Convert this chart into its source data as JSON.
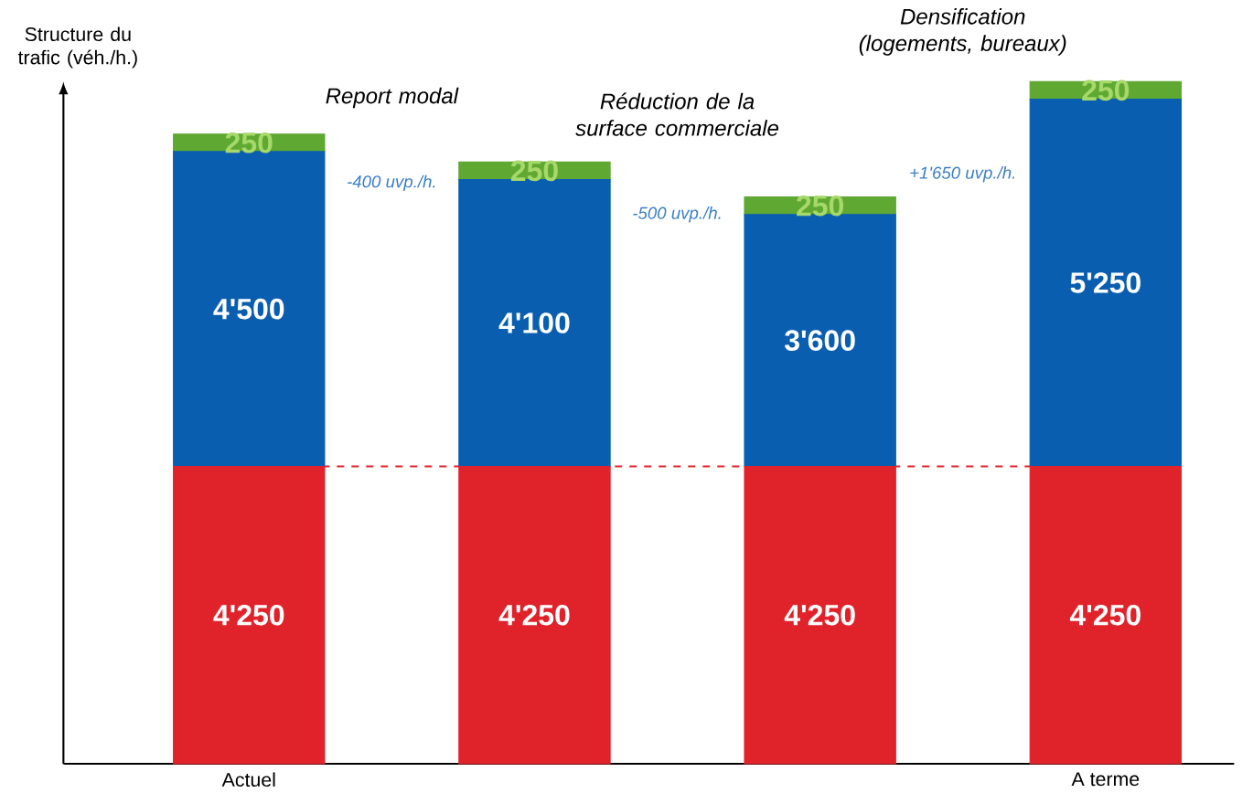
{
  "chart_data": {
    "type": "bar",
    "stacked": true,
    "ylabel": "Structure du trafic (véh./h.)",
    "categories": [
      "Actuel",
      null,
      null,
      "A terme"
    ],
    "series": [
      {
        "color": "#e0232b",
        "values": [
          4250,
          4250,
          4250,
          4250
        ],
        "value_labels": [
          "4'250",
          "4'250",
          "4'250",
          "4'250"
        ]
      },
      {
        "color": "#0a5eb0",
        "values": [
          4500,
          4100,
          3600,
          5250
        ],
        "value_labels": [
          "4'500",
          "4'100",
          "3'600",
          "5'250"
        ]
      },
      {
        "color": "#5fa832",
        "values": [
          250,
          250,
          250,
          250
        ],
        "value_labels": [
          "250",
          "250",
          "250",
          "250"
        ]
      }
    ],
    "tick_labels": "x",
    "ref_lines": [
      {
        "axis": "y",
        "value": 4250,
        "color": "#e0232b",
        "line_style": "dashed"
      }
    ],
    "annotations": [
      "Report modal",
      "Réduction de la surface commerciale",
      "Densification (logements, bureaux)",
      "-400 uvp./h.",
      "-500 uvp./h.",
      "+1'650 uvp./h."
    ]
  }
}
